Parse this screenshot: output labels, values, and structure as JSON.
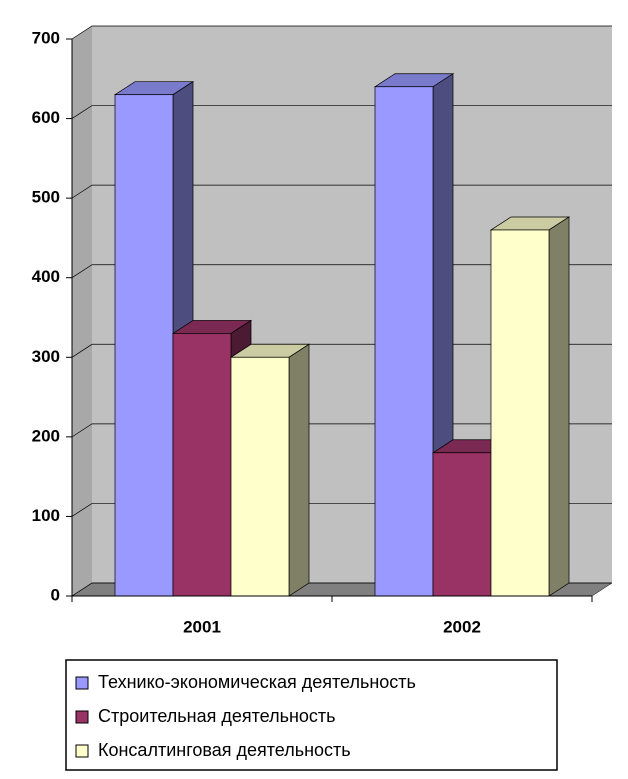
{
  "chart_data": {
    "type": "bar3d",
    "categories": [
      "2001",
      "2002"
    ],
    "series": [
      {
        "name": "Технико-экономическая деятельность",
        "color": "#9999ff",
        "values": [
          630,
          640
        ]
      },
      {
        "name": "Строительная деятельность",
        "color": "#993366",
        "values": [
          330,
          180
        ]
      },
      {
        "name": "Консалтинговая деятельность",
        "color": "#ffffcc",
        "values": [
          300,
          460
        ]
      }
    ],
    "ylim": [
      0,
      700
    ],
    "yticks": [
      0,
      100,
      200,
      300,
      400,
      500,
      600,
      700
    ],
    "grid": true,
    "legend": "bottom"
  }
}
